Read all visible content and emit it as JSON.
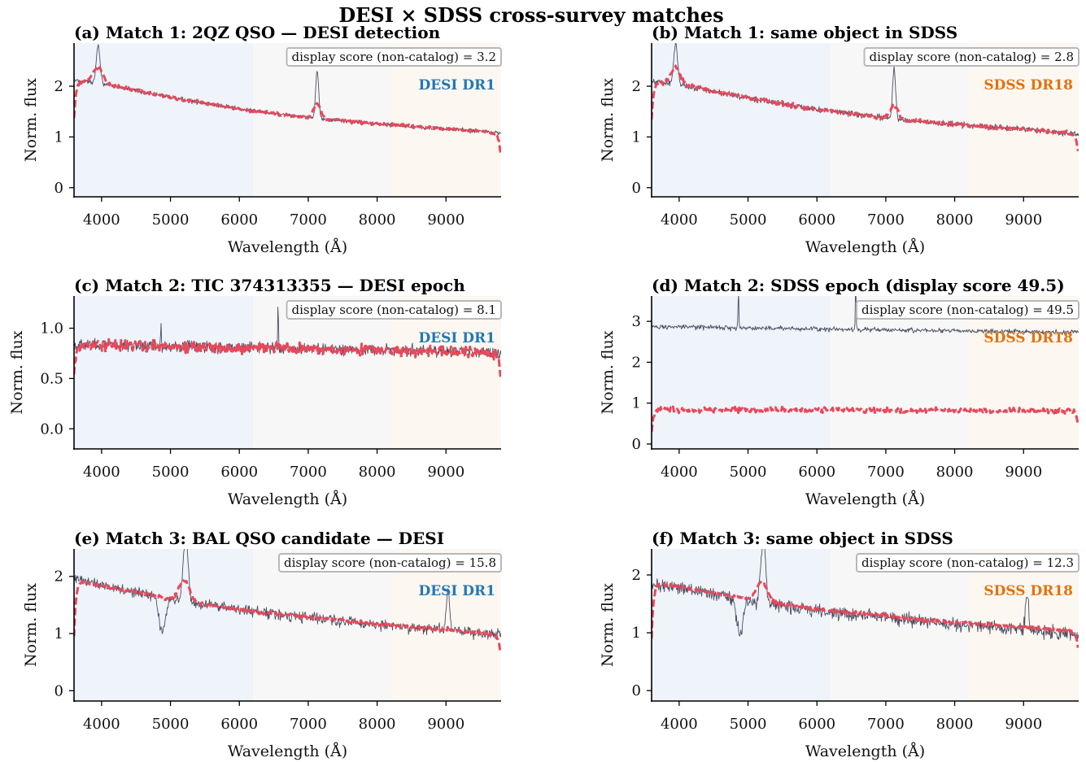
{
  "figure_title": "DESI × SDSS cross-survey matches",
  "colors": {
    "observed": "#4a4e62",
    "model": "#e8485a",
    "desi_label": "#2277b4",
    "sdss_label": "#e2720e",
    "band_blue": "#eff3fa",
    "band_gray": "#f7f7f7",
    "band_orange": "#fcf7f1"
  },
  "chart_data": [
    {
      "type": "line",
      "title": "(a) Match 1: 2QZ QSO — DESI detection",
      "xlabel": "Wavelength (Å)",
      "ylabel": "Norm. flux",
      "xlim": [
        3600,
        9800
      ],
      "ylim": [
        -0.18,
        2.85
      ],
      "x_ticks": [
        4000,
        5000,
        6000,
        7000,
        8000,
        9000
      ],
      "y_ticks": [
        0,
        1,
        2
      ],
      "y_tick_labels": [
        "0",
        "1",
        "2"
      ],
      "score_label": "display score (non-catalog) = 3.2",
      "survey_label": "DESI DR1",
      "survey": "desi",
      "shaded_bands": [
        [
          3600,
          6200
        ],
        [
          6200,
          8200
        ],
        [
          8200,
          9800
        ]
      ],
      "grid": false,
      "series": [
        {
          "style": "thin-solid",
          "continuum": [
            [
              3600,
              2.12
            ],
            [
              4000,
              2.05
            ],
            [
              5000,
              1.78
            ],
            [
              6000,
              1.55
            ],
            [
              7000,
              1.38
            ],
            [
              8000,
              1.26
            ],
            [
              9000,
              1.16
            ],
            [
              9800,
              1.08
            ]
          ],
          "noise": 0.025,
          "lines": [
            {
              "x": 3950,
              "amp": 0.75,
              "sigma": 28
            },
            {
              "x": 7130,
              "amp": 0.95,
              "sigma": 22
            }
          ]
        },
        {
          "style": "dashed",
          "continuum": [
            [
              3600,
              2.12
            ],
            [
              4000,
              2.05
            ],
            [
              5000,
              1.78
            ],
            [
              6000,
              1.55
            ],
            [
              7000,
              1.38
            ],
            [
              8000,
              1.26
            ],
            [
              9000,
              1.16
            ],
            [
              9800,
              1.08
            ]
          ],
          "noise": 0.02,
          "lines": [
            {
              "x": 3950,
              "amp": 0.32,
              "sigma": 70
            },
            {
              "x": 7130,
              "amp": 0.27,
              "sigma": 55
            }
          ],
          "edge_drop": {
            "blue": 0.75,
            "red": 0.55
          }
        }
      ]
    },
    {
      "type": "line",
      "title": "(b) Match 1: same object in SDSS",
      "xlabel": "Wavelength (Å)",
      "ylabel": "Norm. flux",
      "xlim": [
        3600,
        9800
      ],
      "ylim": [
        -0.18,
        2.85
      ],
      "x_ticks": [
        4000,
        5000,
        6000,
        7000,
        8000,
        9000
      ],
      "y_ticks": [
        0,
        1,
        2
      ],
      "y_tick_labels": [
        "0",
        "1",
        "2"
      ],
      "score_label": "display score (non-catalog) = 2.8",
      "survey_label": "SDSS DR18",
      "survey": "sdss",
      "shaded_bands": [
        [
          3600,
          6200
        ],
        [
          6200,
          8200
        ],
        [
          8200,
          9800
        ]
      ],
      "grid": false,
      "series": [
        {
          "style": "thin-solid",
          "continuum": [
            [
              3600,
              2.1
            ],
            [
              4000,
              2.03
            ],
            [
              5000,
              1.77
            ],
            [
              6000,
              1.54
            ],
            [
              7000,
              1.37
            ],
            [
              8000,
              1.25
            ],
            [
              9000,
              1.15
            ],
            [
              9800,
              1.05
            ]
          ],
          "noise": 0.035,
          "lines": [
            {
              "x": 3950,
              "amp": 0.8,
              "sigma": 28
            },
            {
              "x": 7120,
              "amp": 1.0,
              "sigma": 22
            }
          ]
        },
        {
          "style": "dashed",
          "continuum": [
            [
              3600,
              2.1
            ],
            [
              4000,
              2.03
            ],
            [
              5000,
              1.77
            ],
            [
              6000,
              1.54
            ],
            [
              7000,
              1.37
            ],
            [
              8000,
              1.25
            ],
            [
              9000,
              1.15
            ],
            [
              9800,
              1.05
            ]
          ],
          "noise": 0.025,
          "lines": [
            {
              "x": 3950,
              "amp": 0.32,
              "sigma": 70
            },
            {
              "x": 7120,
              "amp": 0.27,
              "sigma": 55
            }
          ],
          "edge_drop": {
            "blue": 0.75,
            "red": 0.45
          }
        }
      ]
    },
    {
      "type": "line",
      "title": "(c) Match 2: TIC 374313355 — DESI epoch",
      "xlabel": "Wavelength (Å)",
      "ylabel": "Norm. flux",
      "xlim": [
        3600,
        9800
      ],
      "ylim": [
        -0.2,
        1.32
      ],
      "x_ticks": [
        4000,
        5000,
        6000,
        7000,
        8000,
        9000
      ],
      "y_ticks": [
        0,
        0.5,
        1
      ],
      "y_tick_labels": [
        "0.0",
        "0.5",
        "1.0"
      ],
      "score_label": "display score (non-catalog) = 8.1",
      "survey_label": "DESI DR1",
      "survey": "desi",
      "shaded_bands": [
        [
          3600,
          6200
        ],
        [
          6200,
          8200
        ],
        [
          8200,
          9800
        ]
      ],
      "grid": false,
      "series": [
        {
          "style": "thin-solid",
          "continuum": [
            [
              3600,
              0.84
            ],
            [
              9800,
              0.76
            ]
          ],
          "noise": 0.035,
          "lines": [
            {
              "x": 4861,
              "amp": 0.22,
              "sigma": 5
            },
            {
              "x": 6563,
              "amp": 0.48,
              "sigma": 5
            }
          ]
        },
        {
          "style": "dashed",
          "continuum": [
            [
              3600,
              0.83
            ],
            [
              9800,
              0.76
            ]
          ],
          "noise": 0.035,
          "lines": [
            {
              "x": 6563,
              "amp": 0.05,
              "sigma": 20
            }
          ],
          "edge_drop": {
            "blue": 0.32,
            "red": 0.33
          }
        }
      ]
    },
    {
      "type": "line",
      "title": "(d) Match 2: SDSS epoch (display score 49.5)",
      "xlabel": "Wavelength (Å)",
      "ylabel": "Norm. flux",
      "xlim": [
        3600,
        9800
      ],
      "ylim": [
        -0.12,
        3.62
      ],
      "x_ticks": [
        4000,
        5000,
        6000,
        7000,
        8000,
        9000
      ],
      "y_ticks": [
        0,
        1,
        2,
        3
      ],
      "y_tick_labels": [
        "0",
        "1",
        "2",
        "3"
      ],
      "score_label": "display score (non-catalog) = 49.5",
      "survey_label": "SDSS DR18",
      "survey": "sdss",
      "shaded_bands": [
        [
          3600,
          6200
        ],
        [
          6200,
          8200
        ],
        [
          8200,
          9800
        ]
      ],
      "grid": false,
      "series": [
        {
          "style": "thin-solid",
          "continuum": [
            [
              3600,
              2.87
            ],
            [
              9800,
              2.73
            ]
          ],
          "noise": 0.035,
          "lines": [
            {
              "x": 4861,
              "amp": 0.9,
              "sigma": 6
            },
            {
              "x": 6563,
              "amp": 1.1,
              "sigma": 6
            }
          ]
        },
        {
          "style": "dashed",
          "continuum": [
            [
              3600,
              0.84
            ],
            [
              9800,
              0.81
            ]
          ],
          "noise": 0.04,
          "lines": [],
          "edge_drop": {
            "blue": 0.5,
            "red": 0.45
          }
        }
      ]
    },
    {
      "type": "line",
      "title": "(e) Match 3: BAL QSO candidate — DESI",
      "xlabel": "Wavelength (Å)",
      "ylabel": "Norm. flux",
      "xlim": [
        3600,
        9800
      ],
      "ylim": [
        -0.18,
        2.48
      ],
      "x_ticks": [
        4000,
        5000,
        6000,
        7000,
        8000,
        9000
      ],
      "y_ticks": [
        0,
        1,
        2
      ],
      "y_tick_labels": [
        "0",
        "1",
        "2"
      ],
      "score_label": "display score (non-catalog) = 15.8",
      "survey_label": "DESI DR1",
      "survey": "desi",
      "shaded_bands": [
        [
          3600,
          6200
        ],
        [
          6200,
          8200
        ],
        [
          8200,
          9800
        ]
      ],
      "grid": false,
      "series": [
        {
          "style": "thin-solid",
          "continuum": [
            [
              3600,
              1.97
            ],
            [
              4000,
              1.85
            ],
            [
              5000,
              1.6
            ],
            [
              6000,
              1.42
            ],
            [
              7000,
              1.28
            ],
            [
              8000,
              1.16
            ],
            [
              9000,
              1.06
            ],
            [
              9800,
              0.96
            ]
          ],
          "noise": 0.06,
          "lines": [
            {
              "x": 5220,
              "amp": 1.1,
              "sigma": 35
            },
            {
              "x": 9030,
              "amp": 0.75,
              "sigma": 22
            },
            {
              "x": 4880,
              "amp": -0.62,
              "sigma": 45
            }
          ]
        },
        {
          "style": "dashed",
          "continuum": [
            [
              3600,
              1.95
            ],
            [
              4000,
              1.84
            ],
            [
              5000,
              1.6
            ],
            [
              6000,
              1.42
            ],
            [
              7000,
              1.28
            ],
            [
              8000,
              1.16
            ],
            [
              9000,
              1.07
            ],
            [
              9800,
              0.98
            ]
          ],
          "noise": 0.02,
          "lines": [
            {
              "x": 5200,
              "amp": 0.36,
              "sigma": 75
            }
          ],
          "edge_drop": {
            "blue": 1.0,
            "red": 0.45
          }
        }
      ]
    },
    {
      "type": "line",
      "title": "(f) Match 3: same object in SDSS",
      "xlabel": "Wavelength (Å)",
      "ylabel": "Norm. flux",
      "xlim": [
        3600,
        9800
      ],
      "ylim": [
        -0.18,
        2.45
      ],
      "x_ticks": [
        4000,
        5000,
        6000,
        7000,
        8000,
        9000
      ],
      "y_ticks": [
        0,
        1,
        2
      ],
      "y_tick_labels": [
        "0",
        "1",
        "2"
      ],
      "score_label": "display score (non-catalog) = 12.3",
      "survey_label": "SDSS DR18",
      "survey": "sdss",
      "shaded_bands": [
        [
          3600,
          6200
        ],
        [
          6200,
          8200
        ],
        [
          8200,
          9800
        ]
      ],
      "grid": false,
      "series": [
        {
          "style": "thin-solid",
          "continuum": [
            [
              3600,
              1.85
            ],
            [
              4000,
              1.77
            ],
            [
              5000,
              1.55
            ],
            [
              6000,
              1.38
            ],
            [
              7000,
              1.26
            ],
            [
              8000,
              1.15
            ],
            [
              9000,
              1.06
            ],
            [
              9800,
              0.97
            ]
          ],
          "noise": 0.07,
          "lines": [
            {
              "x": 5220,
              "amp": 1.1,
              "sigma": 35
            },
            {
              "x": 9050,
              "amp": 0.65,
              "sigma": 22
            },
            {
              "x": 4880,
              "amp": -0.62,
              "sigma": 45
            }
          ]
        },
        {
          "style": "dashed",
          "continuum": [
            [
              3600,
              1.88
            ],
            [
              4000,
              1.8
            ],
            [
              5000,
              1.58
            ],
            [
              6000,
              1.41
            ],
            [
              7000,
              1.29
            ],
            [
              8000,
              1.18
            ],
            [
              9000,
              1.1
            ],
            [
              9800,
              1.02
            ]
          ],
          "noise": 0.02,
          "lines": [
            {
              "x": 5200,
              "amp": 0.34,
              "sigma": 75
            }
          ],
          "edge_drop": {
            "blue": 1.0,
            "red": 0.4
          }
        }
      ]
    }
  ]
}
